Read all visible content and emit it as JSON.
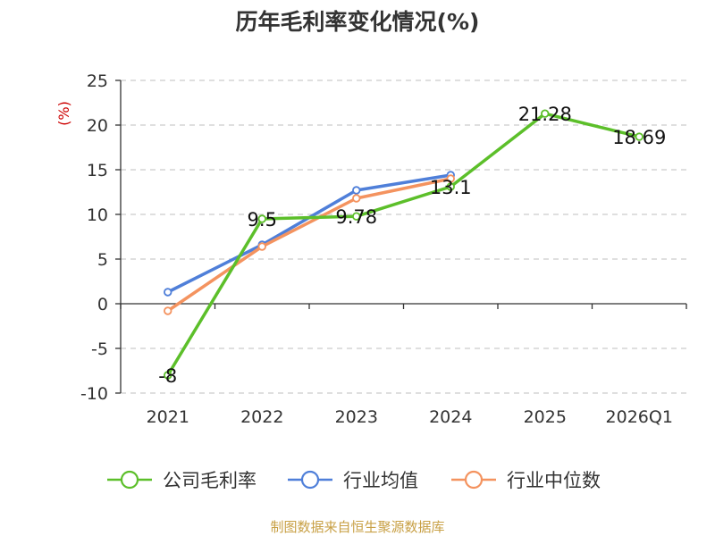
{
  "title": "历年毛利率变化情况(%)",
  "source_note": "制图数据来自恒生聚源数据库",
  "legend": [
    "公司毛利率",
    "行业均值",
    "行业中位数"
  ],
  "chart_data": {
    "type": "line",
    "title": "历年毛利率变化情况(%)",
    "ylabel": "(%)",
    "xlabel": "",
    "categories": [
      "2021",
      "2022",
      "2023",
      "2024",
      "2025",
      "2026Q1"
    ],
    "ylim": [
      -10,
      25
    ],
    "yticks": [
      25,
      20,
      15,
      10,
      5,
      0,
      -5,
      -10
    ],
    "grid": true,
    "legend_position": "bottom",
    "series": [
      {
        "name": "公司毛利率",
        "color": "#5cbf2a",
        "values": [
          -8,
          9.5,
          9.78,
          13.1,
          21.28,
          18.69
        ],
        "labels": [
          "-8",
          "9.5",
          "9.78",
          "13.1",
          "21.28",
          "18.69"
        ]
      },
      {
        "name": "行业均值",
        "color": "#4f7fd9",
        "values": [
          1.3,
          6.6,
          12.7,
          14.4,
          null,
          null
        ]
      },
      {
        "name": "行业中位数",
        "color": "#f4935f",
        "values": [
          -0.8,
          6.4,
          11.8,
          14.0,
          null,
          null
        ]
      }
    ]
  }
}
